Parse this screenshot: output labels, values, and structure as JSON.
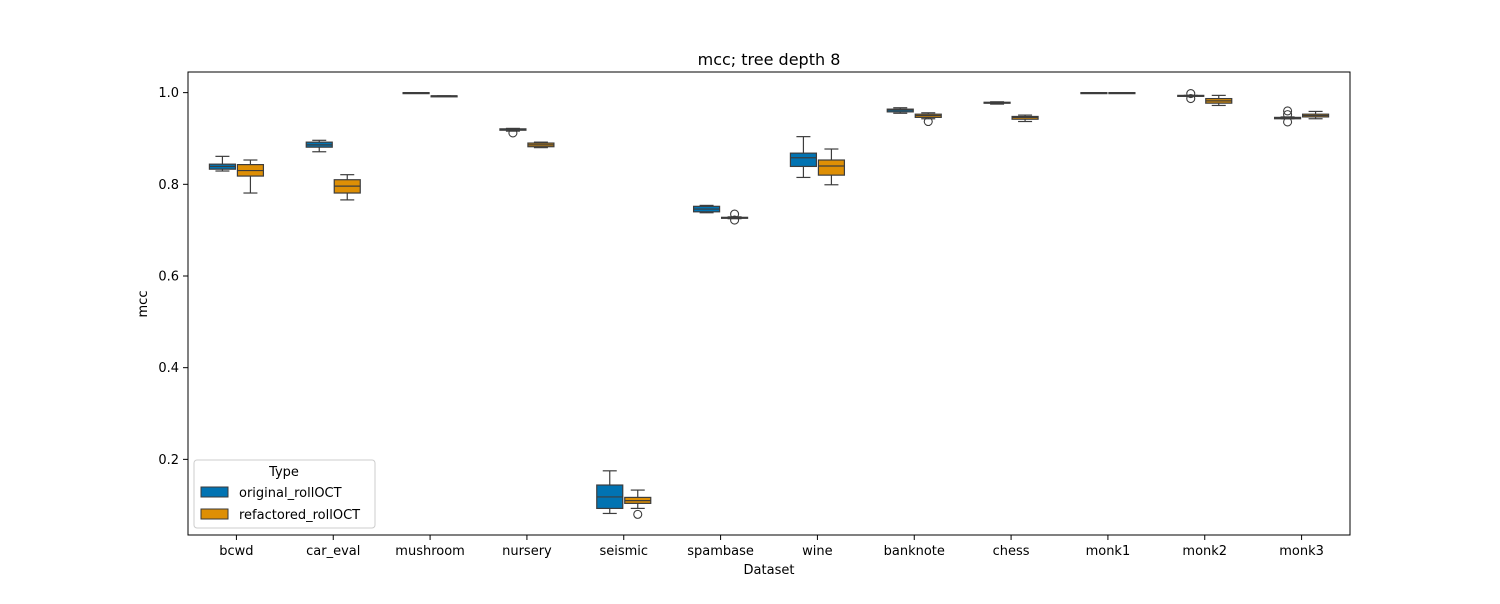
{
  "chart_data": {
    "type": "box",
    "title": "mcc; tree depth 8",
    "xlabel": "Dataset",
    "ylabel": "mcc",
    "ylim": [
      0.035,
      1.045
    ],
    "yticks": [
      "0.2",
      "0.4",
      "0.6",
      "0.8",
      "1.0"
    ],
    "ytick_values": [
      0.2,
      0.4,
      0.6,
      0.8,
      1.0
    ],
    "grid": false,
    "legend": {
      "title": "Type",
      "position": "lower-left"
    },
    "categories": [
      "bcwd",
      "car_eval",
      "mushroom",
      "nursery",
      "seismic",
      "spambase",
      "wine",
      "banknote",
      "chess",
      "monk1",
      "monk2",
      "monk3"
    ],
    "series": [
      {
        "name": "original_rollOCT",
        "color": "#0173b2",
        "boxes": [
          {
            "whislo": 0.829,
            "q1": 0.833,
            "med": 0.839,
            "q3": 0.844,
            "whishi": 0.861,
            "fliers": []
          },
          {
            "whislo": 0.871,
            "q1": 0.881,
            "med": 0.886,
            "q3": 0.892,
            "whishi": 0.896,
            "fliers": []
          },
          {
            "whislo": 0.999,
            "q1": 0.999,
            "med": 1.0,
            "q3": 1.0,
            "whishi": 1.0,
            "fliers": []
          },
          {
            "whislo": 0.916,
            "q1": 0.918,
            "med": 0.92,
            "q3": 0.921,
            "whishi": 0.922,
            "fliers": [
              0.912
            ]
          },
          {
            "whislo": 0.082,
            "q1": 0.093,
            "med": 0.118,
            "q3": 0.144,
            "whishi": 0.175,
            "fliers": []
          },
          {
            "whislo": 0.738,
            "q1": 0.74,
            "med": 0.746,
            "q3": 0.752,
            "whishi": 0.754,
            "fliers": []
          },
          {
            "whislo": 0.815,
            "q1": 0.839,
            "med": 0.858,
            "q3": 0.868,
            "whishi": 0.904,
            "fliers": []
          },
          {
            "whislo": 0.955,
            "q1": 0.958,
            "med": 0.962,
            "q3": 0.964,
            "whishi": 0.967,
            "fliers": []
          },
          {
            "whislo": 0.975,
            "q1": 0.977,
            "med": 0.978,
            "q3": 0.979,
            "whishi": 0.98,
            "fliers": []
          },
          {
            "whislo": 1.0,
            "q1": 1.0,
            "med": 1.0,
            "q3": 1.0,
            "whishi": 1.0,
            "fliers": []
          },
          {
            "whislo": 0.993,
            "q1": 0.993,
            "med": 0.993,
            "q3": 0.994,
            "whishi": 0.994,
            "fliers": [
              0.998,
              0.987
            ]
          },
          {
            "whislo": 0.943,
            "q1": 0.943,
            "med": 0.945,
            "q3": 0.946,
            "whishi": 0.947,
            "fliers": [
              0.96,
              0.952,
              0.936
            ]
          }
        ]
      },
      {
        "name": "refactored_rollOCT",
        "color": "#de8f05",
        "boxes": [
          {
            "whislo": 0.781,
            "q1": 0.818,
            "med": 0.83,
            "q3": 0.843,
            "whishi": 0.853,
            "fliers": []
          },
          {
            "whislo": 0.766,
            "q1": 0.781,
            "med": 0.796,
            "q3": 0.81,
            "whishi": 0.821,
            "fliers": []
          },
          {
            "whislo": 0.992,
            "q1": 0.992,
            "med": 0.993,
            "q3": 0.993,
            "whishi": 0.993,
            "fliers": []
          },
          {
            "whislo": 0.88,
            "q1": 0.882,
            "med": 0.886,
            "q3": 0.89,
            "whishi": 0.892,
            "fliers": []
          },
          {
            "whislo": 0.093,
            "q1": 0.104,
            "med": 0.11,
            "q3": 0.117,
            "whishi": 0.133,
            "fliers": [
              0.08
            ]
          },
          {
            "whislo": 0.725,
            "q1": 0.726,
            "med": 0.727,
            "q3": 0.728,
            "whishi": 0.729,
            "fliers": [
              0.735,
              0.722
            ]
          },
          {
            "whislo": 0.799,
            "q1": 0.82,
            "med": 0.84,
            "q3": 0.853,
            "whishi": 0.877,
            "fliers": []
          },
          {
            "whislo": 0.943,
            "q1": 0.946,
            "med": 0.95,
            "q3": 0.953,
            "whishi": 0.956,
            "fliers": [
              0.937
            ]
          },
          {
            "whislo": 0.937,
            "q1": 0.942,
            "med": 0.946,
            "q3": 0.948,
            "whishi": 0.951,
            "fliers": []
          },
          {
            "whislo": 1.0,
            "q1": 1.0,
            "med": 1.0,
            "q3": 1.0,
            "whishi": 1.0,
            "fliers": []
          },
          {
            "whislo": 0.972,
            "q1": 0.977,
            "med": 0.982,
            "q3": 0.987,
            "whishi": 0.994,
            "fliers": []
          },
          {
            "whislo": 0.943,
            "q1": 0.947,
            "med": 0.95,
            "q3": 0.953,
            "whishi": 0.959,
            "fliers": []
          }
        ]
      }
    ]
  }
}
